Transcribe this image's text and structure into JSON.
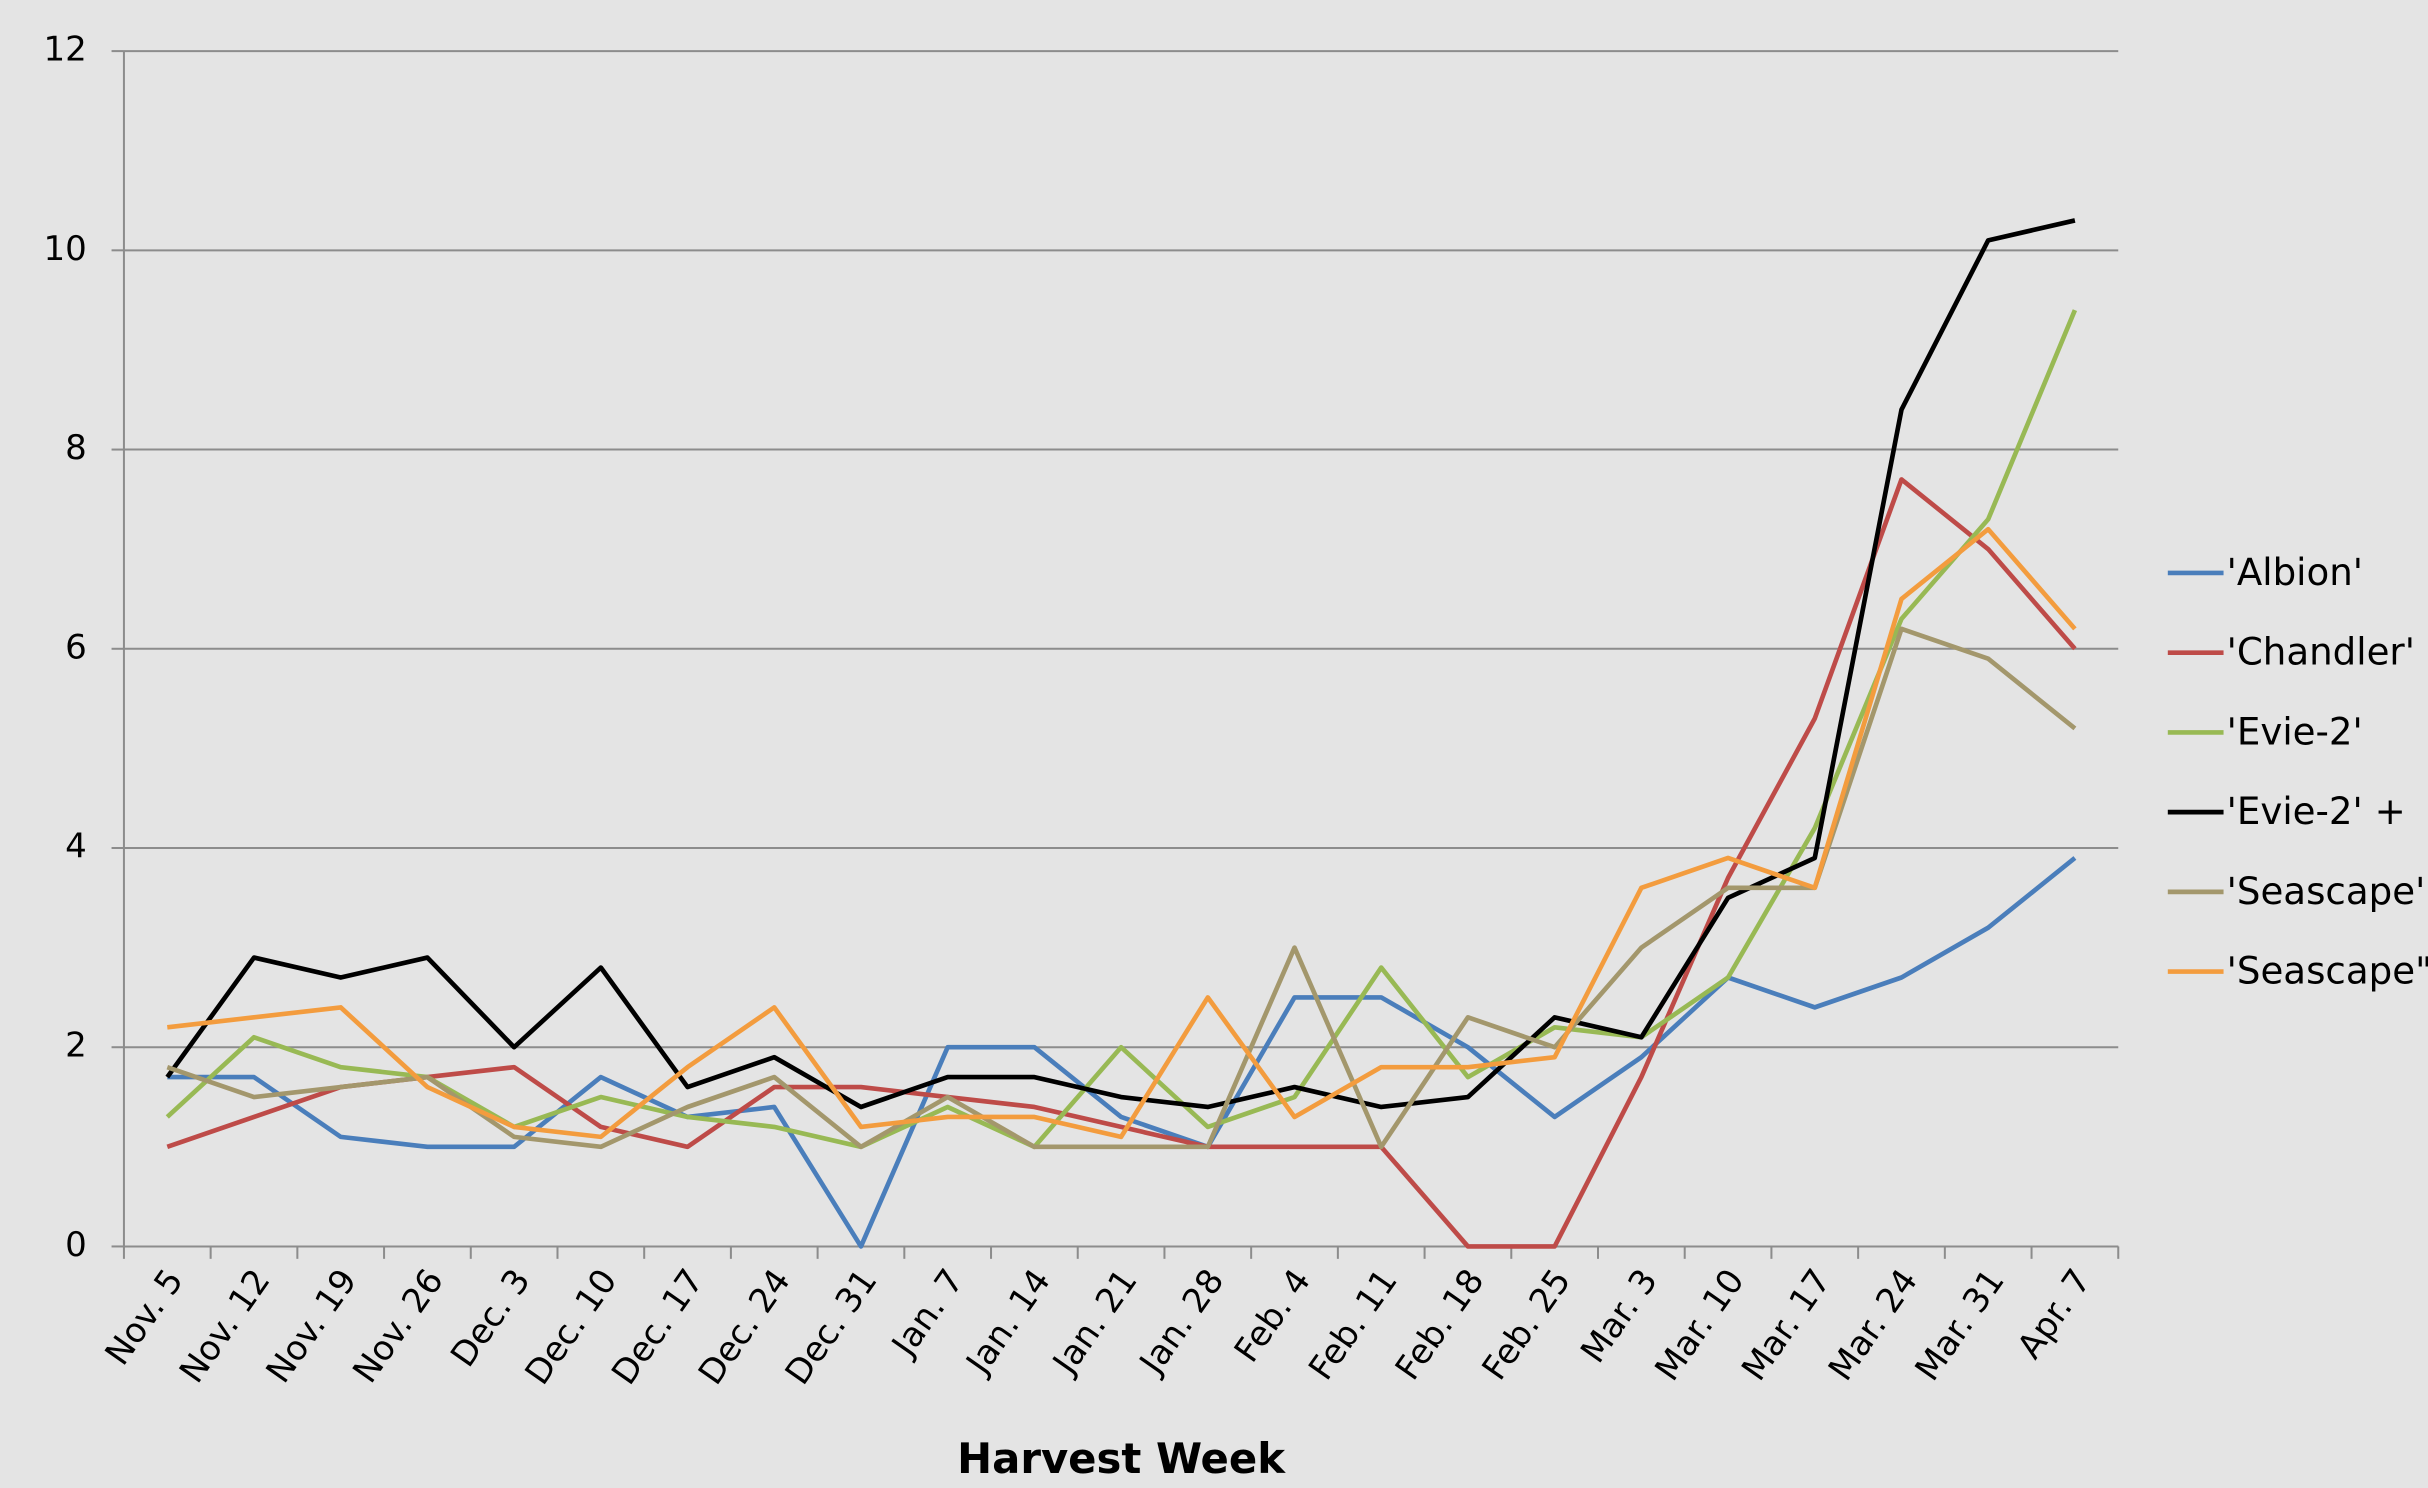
{
  "chart_data": {
    "type": "line",
    "x_label": "Harvest Week",
    "categories": [
      "Nov. 5",
      "Nov. 12",
      "Nov. 19",
      "Nov. 26",
      "Dec. 3",
      "Dec. 10",
      "Dec. 17",
      "Dec. 24",
      "Dec. 31",
      "Jan. 7",
      "Jan. 14",
      "Jan. 21",
      "Jan. 28",
      "Feb. 4",
      "Feb. 11",
      "Feb. 18",
      "Feb. 25",
      "Mar. 3",
      "Mar. 10",
      "Mar. 17",
      "Mar. 24",
      "Mar. 31",
      "Apr. 7"
    ],
    "series": [
      {
        "name": "'Albion'",
        "color": "#4a7ebb",
        "values": [
          1.7,
          1.7,
          1.1,
          1.0,
          1.0,
          1.7,
          1.3,
          1.4,
          0,
          2.0,
          2.0,
          1.3,
          1.0,
          2.5,
          2.5,
          2.0,
          1.3,
          1.9,
          2.7,
          2.4,
          2.7,
          3.2,
          3.9
        ]
      },
      {
        "name": "'Chandler'",
        "color": "#be4b48",
        "values": [
          1.0,
          1.3,
          1.6,
          1.7,
          1.8,
          1.2,
          1.0,
          1.6,
          1.6,
          1.5,
          1.4,
          1.2,
          1.0,
          1.0,
          1.0,
          0,
          0,
          1.7,
          3.7,
          5.3,
          7.7,
          7.0,
          6.0
        ]
      },
      {
        "name": "'Evie-2'",
        "color": "#98b954",
        "values": [
          1.3,
          2.1,
          1.8,
          1.7,
          1.2,
          1.5,
          1.3,
          1.2,
          1.0,
          1.4,
          1.0,
          2.0,
          1.2,
          1.5,
          2.8,
          1.7,
          2.2,
          2.1,
          2.7,
          4.2,
          6.3,
          7.3,
          9.4
        ]
      },
      {
        "name": "'Evie-2' +",
        "color": "#000000",
        "values": [
          1.7,
          2.9,
          2.7,
          2.9,
          2.0,
          2.8,
          1.6,
          1.9,
          1.4,
          1.7,
          1.7,
          1.5,
          1.4,
          1.6,
          1.4,
          1.5,
          2.3,
          2.1,
          3.5,
          3.9,
          8.4,
          10.1,
          10.3
        ]
      },
      {
        "name": "'Seascape'",
        "color": "#a3976c",
        "values": [
          1.8,
          1.5,
          1.6,
          1.7,
          1.1,
          1.0,
          1.4,
          1.7,
          1.0,
          1.5,
          1.0,
          1.0,
          1.0,
          3.0,
          1.0,
          2.3,
          2.0,
          3.0,
          3.6,
          3.6,
          6.2,
          5.9,
          5.2
        ]
      },
      {
        "name": "'Seascape\"",
        "color": "#f39c3e",
        "values": [
          2.2,
          2.3,
          2.4,
          1.6,
          1.2,
          1.1,
          1.8,
          2.4,
          1.2,
          1.3,
          1.3,
          1.1,
          2.5,
          1.3,
          1.8,
          1.8,
          1.9,
          3.6,
          3.9,
          3.6,
          6.5,
          7.2,
          6.2
        ]
      }
    ],
    "ylim": [
      0,
      12
    ],
    "yticks": [
      0,
      2,
      4,
      6,
      8,
      10,
      12
    ],
    "grid": true,
    "legend": "right"
  }
}
